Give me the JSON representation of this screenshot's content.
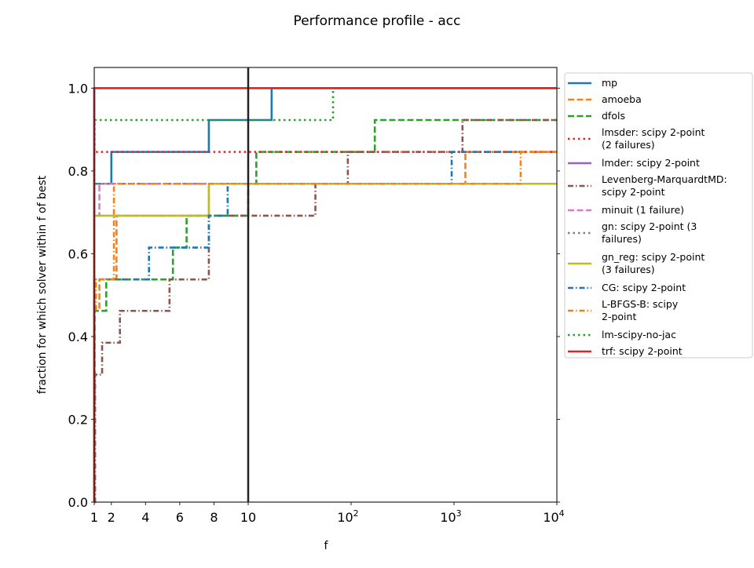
{
  "chart_data": {
    "type": "line",
    "step": "post",
    "title": "Performance profile - acc",
    "xlabel": "f",
    "ylabel": "fraction for which solver within f of best",
    "xscale": "linear from 1 to 10, log from 10 to 10^4",
    "xlim": [
      1,
      10000
    ],
    "ylim": [
      0,
      1.05
    ],
    "xticks": [
      {
        "value": 1,
        "label": "1"
      },
      {
        "value": 2,
        "label": "2"
      },
      {
        "value": 4,
        "label": "4"
      },
      {
        "value": 6,
        "label": "6"
      },
      {
        "value": 8,
        "label": "8"
      },
      {
        "value": 10,
        "label": "10"
      },
      {
        "value": 100,
        "label": "10",
        "sup": "2"
      },
      {
        "value": 1000,
        "label": "10",
        "sup": "3"
      },
      {
        "value": 10000,
        "label": "10",
        "sup": "4"
      }
    ],
    "yticks": [
      "0.0",
      "0.2",
      "0.4",
      "0.6",
      "0.8",
      "1.0"
    ],
    "ytick_values": [
      0,
      0.2,
      0.4,
      0.6,
      0.8,
      1.0
    ],
    "grid": false,
    "legend_placement": "outside right",
    "vertical_marker": 10,
    "series": [
      {
        "name": "mp",
        "lines": [
          "mp"
        ],
        "color": "#1f77b4",
        "style": "solid",
        "steps": [
          [
            1,
            0.769
          ],
          [
            2,
            0.846
          ],
          [
            7.7,
            0.923
          ],
          [
            16.9,
            1.0
          ]
        ]
      },
      {
        "name": "amoeba",
        "lines": [
          "amoeba"
        ],
        "color": "#ff7f0e",
        "style": "dashed",
        "steps": [
          [
            1,
            0.231
          ],
          [
            1.03,
            0.462
          ],
          [
            1.3,
            0.538
          ],
          [
            2.3,
            0.692
          ],
          [
            7.7,
            0.769
          ],
          [
            1290,
            0.846
          ]
        ]
      },
      {
        "name": "dfols",
        "lines": [
          "dfols"
        ],
        "color": "#2ca02c",
        "style": "dashed",
        "steps": [
          [
            1,
            0.462
          ],
          [
            1.7,
            0.538
          ],
          [
            5.6,
            0.615
          ],
          [
            6.4,
            0.692
          ],
          [
            10,
            0.769
          ],
          [
            12,
            0.846
          ],
          [
            170,
            0.923
          ]
        ]
      },
      {
        "name": "lmsder: scipy 2-point (2 failures)",
        "lines": [
          "lmsder: scipy 2-point",
          "(2 failures)"
        ],
        "color": "#d62728",
        "style": "dotted",
        "steps": [
          [
            1,
            0.846
          ]
        ]
      },
      {
        "name": "lmder: scipy 2-point",
        "lines": [
          "lmder: scipy 2-point"
        ],
        "color": "#9467bd",
        "style": "solid",
        "steps": [
          [
            1,
            1.0
          ]
        ]
      },
      {
        "name": "Levenberg-MarquardtMD: scipy 2-point",
        "lines": [
          "Levenberg-MarquardtMD:",
          "scipy 2-point"
        ],
        "color": "#8c564b",
        "style": "dashdot",
        "steps": [
          [
            1,
            0.0
          ],
          [
            1.05,
            0.308
          ],
          [
            1.46,
            0.385
          ],
          [
            2.5,
            0.462
          ],
          [
            5.4,
            0.538
          ],
          [
            7.7,
            0.692
          ],
          [
            45,
            0.769
          ],
          [
            93,
            0.846
          ],
          [
            1210,
            0.923
          ]
        ]
      },
      {
        "name": "minuit (1 failure)",
        "lines": [
          "minuit (1 failure)"
        ],
        "color": "#e377c2",
        "style": "dashed",
        "steps": [
          [
            1,
            0.692
          ],
          [
            1.3,
            0.769
          ]
        ]
      },
      {
        "name": "gn: scipy 2-point (3 failures)",
        "lines": [
          "gn: scipy 2-point (3",
          "failures)"
        ],
        "color": "#7f7f7f",
        "style": "dotted",
        "steps": [
          [
            1,
            0.769
          ]
        ]
      },
      {
        "name": "gn_reg: scipy 2-point (3 failures)",
        "lines": [
          "gn_reg: scipy 2-point",
          "(3 failures)"
        ],
        "color": "#bcbd22",
        "style": "solid",
        "steps": [
          [
            1,
            0.692
          ],
          [
            7.7,
            0.769
          ]
        ]
      },
      {
        "name": "CG: scipy 2-point",
        "lines": [
          "CG: scipy 2-point"
        ],
        "color": "#1f77b4",
        "style": "dashdot",
        "steps": [
          [
            1,
            0.538
          ],
          [
            4.2,
            0.615
          ],
          [
            7.7,
            0.692
          ],
          [
            8.8,
            0.769
          ],
          [
            950,
            0.846
          ]
        ]
      },
      {
        "name": "L-BFGS-B: scipy 2-point",
        "lines": [
          "L-BFGS-B: scipy",
          "2-point"
        ],
        "color": "#ff7f0e",
        "style": "dashdot",
        "steps": [
          [
            1,
            0.462
          ],
          [
            1.1,
            0.538
          ],
          [
            2.15,
            0.769
          ],
          [
            1290,
            0.769
          ],
          [
            4450,
            0.846
          ]
        ]
      },
      {
        "name": "lm-scipy-no-jac",
        "lines": [
          "lm-scipy-no-jac"
        ],
        "color": "#2ca02c",
        "style": "dotted",
        "steps": [
          [
            1,
            0.846
          ],
          [
            1.02,
            0.923
          ],
          [
            66.8,
            1.0
          ]
        ]
      },
      {
        "name": "trf: scipy 2-point",
        "lines": [
          "trf: scipy 2-point"
        ],
        "color": "#d62728",
        "style": "solid",
        "steps": [
          [
            1,
            1.0
          ]
        ]
      }
    ]
  }
}
